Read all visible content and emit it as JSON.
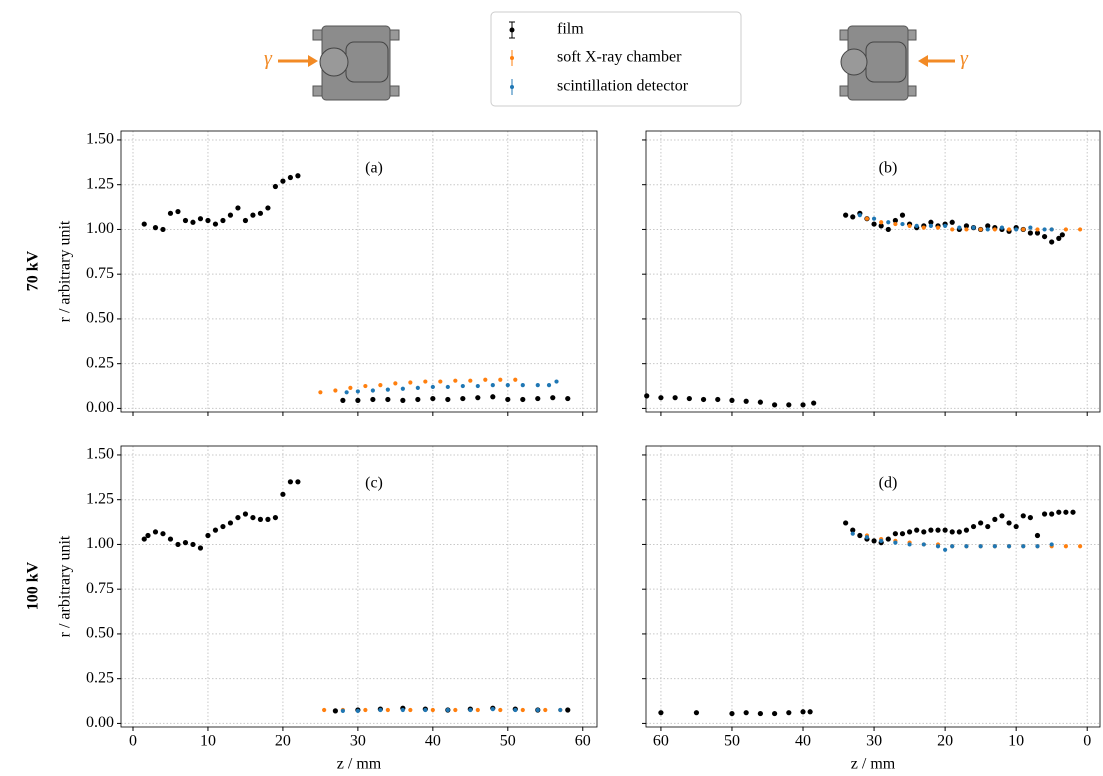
{
  "row_labels": [
    "70 kV",
    "100 kV"
  ],
  "illustrations": [
    {
      "label": "γ"
    },
    {
      "label": "γ"
    }
  ],
  "chart_data": [
    {
      "type": "scatter",
      "title": "(a)",
      "xlim": [
        -1.6,
        61.9
      ],
      "ylim": [
        -0.02,
        1.55
      ],
      "xticks": [
        0,
        10,
        20,
        30,
        40,
        50,
        60
      ],
      "yticks": [
        {
          "value": 0,
          "label": "0.00"
        },
        {
          "value": 0.25,
          "label": "0.25"
        },
        {
          "value": 0.5,
          "label": "0.50"
        },
        {
          "value": 0.75,
          "label": "0.75"
        },
        {
          "value": 1,
          "label": "1.00"
        },
        {
          "value": 1.25,
          "label": "1.25"
        },
        {
          "value": 1.5,
          "label": "1.50"
        }
      ],
      "show_xticklabels": false,
      "show_yticklabels": true,
      "grid": true,
      "ylabel": "r / arbitrary unit",
      "series": [
        {
          "name": "film",
          "color": "#000000",
          "x": [
            1.5,
            3,
            4,
            5,
            6,
            7,
            8,
            9,
            10,
            11,
            12,
            13,
            14,
            15,
            16,
            17,
            18,
            19,
            20,
            21,
            22,
            28,
            30,
            32,
            34,
            36,
            38,
            40,
            42,
            44,
            46,
            48,
            50,
            52,
            54,
            56,
            58
          ],
          "values": [
            1.03,
            1.01,
            1.0,
            1.09,
            1.1,
            1.05,
            1.04,
            1.06,
            1.05,
            1.03,
            1.05,
            1.08,
            1.12,
            1.05,
            1.08,
            1.09,
            1.12,
            1.24,
            1.27,
            1.29,
            1.3,
            0.045,
            0.045,
            0.05,
            0.05,
            0.045,
            0.05,
            0.055,
            0.05,
            0.055,
            0.06,
            0.065,
            0.05,
            0.05,
            0.055,
            0.06,
            0.055
          ]
        },
        {
          "name": "soft X-ray chamber",
          "color": "#ff7f0e",
          "x": [
            25,
            27,
            29,
            31,
            33,
            35,
            37,
            39,
            41,
            43,
            45,
            47,
            49,
            51
          ],
          "values": [
            0.09,
            0.1,
            0.115,
            0.125,
            0.13,
            0.14,
            0.145,
            0.15,
            0.15,
            0.155,
            0.155,
            0.16,
            0.16,
            0.16
          ]
        },
        {
          "name": "scintillation detector",
          "color": "#1f77b4",
          "x": [
            28.5,
            30,
            32,
            34,
            36,
            38,
            40,
            42,
            44,
            46,
            48,
            50,
            52,
            54,
            55.5,
            56.5
          ],
          "values": [
            0.09,
            0.095,
            0.1,
            0.105,
            0.11,
            0.115,
            0.12,
            0.12,
            0.125,
            0.125,
            0.13,
            0.13,
            0.13,
            0.13,
            0.13,
            0.15
          ]
        }
      ]
    },
    {
      "type": "scatter",
      "title": "(b)",
      "xlim": [
        62.1,
        -1.8
      ],
      "ylim": [
        -0.02,
        1.55
      ],
      "xticks": [
        60,
        50,
        40,
        30,
        20,
        10,
        0
      ],
      "yticks": [
        {
          "value": 0,
          "label": "0.00"
        },
        {
          "value": 0.25,
          "label": "0.25"
        },
        {
          "value": 0.5,
          "label": "0.50"
        },
        {
          "value": 0.75,
          "label": "0.75"
        },
        {
          "value": 1,
          "label": "1.00"
        },
        {
          "value": 1.25,
          "label": "1.25"
        },
        {
          "value": 1.5,
          "label": "1.50"
        }
      ],
      "show_xticklabels": false,
      "show_yticklabels": false,
      "grid": true,
      "series": [
        {
          "color": "#000000",
          "x": [
            34,
            33,
            32,
            31,
            30,
            29,
            28,
            27,
            26,
            25,
            24,
            23,
            22,
            21,
            20,
            19,
            18,
            17,
            16,
            15,
            14,
            13,
            12,
            11,
            10,
            9,
            8,
            7,
            6,
            5,
            4,
            3.5,
            62,
            60,
            58,
            56,
            54,
            52,
            50,
            48,
            46,
            44,
            42,
            40,
            38.5
          ],
          "values": [
            1.08,
            1.07,
            1.09,
            1.06,
            1.03,
            1.02,
            1.0,
            1.05,
            1.08,
            1.03,
            1.01,
            1.02,
            1.04,
            1.02,
            1.03,
            1.04,
            1.0,
            1.02,
            1.01,
            1.0,
            1.02,
            1.01,
            1.0,
            0.99,
            1.01,
            1.0,
            0.98,
            0.98,
            0.96,
            0.93,
            0.95,
            0.97,
            0.07,
            0.06,
            0.06,
            0.055,
            0.05,
            0.05,
            0.045,
            0.04,
            0.035,
            0.02,
            0.02,
            0.02,
            0.03
          ]
        },
        {
          "color": "#ff7f0e",
          "x": [
            31,
            29,
            27,
            25,
            23,
            21,
            19,
            17,
            15,
            13,
            11,
            9,
            7,
            5,
            3,
            1
          ],
          "values": [
            1.06,
            1.04,
            1.03,
            1.02,
            1.01,
            1.01,
            1.0,
            1.0,
            1.0,
            1.0,
            1.0,
            1.0,
            1.0,
            1.0,
            1.0,
            1.0
          ]
        },
        {
          "color": "#1f77b4",
          "x": [
            32,
            30,
            28,
            26,
            24,
            22,
            20,
            18,
            16,
            14,
            12,
            10,
            8,
            6,
            5
          ],
          "values": [
            1.08,
            1.06,
            1.04,
            1.03,
            1.02,
            1.02,
            1.02,
            1.01,
            1.01,
            1.0,
            1.01,
            1.0,
            1.01,
            1.0,
            1.0
          ]
        }
      ]
    },
    {
      "type": "scatter",
      "title": "(c)",
      "xlim": [
        -1.6,
        61.9
      ],
      "ylim": [
        -0.02,
        1.55
      ],
      "xticks": [
        0,
        10,
        20,
        30,
        40,
        50,
        60
      ],
      "yticks": [
        {
          "value": 0,
          "label": "0.00"
        },
        {
          "value": 0.25,
          "label": "0.25"
        },
        {
          "value": 0.5,
          "label": "0.50"
        },
        {
          "value": 0.75,
          "label": "0.75"
        },
        {
          "value": 1,
          "label": "1.00"
        },
        {
          "value": 1.25,
          "label": "1.25"
        },
        {
          "value": 1.5,
          "label": "1.50"
        }
      ],
      "show_xticklabels": true,
      "show_yticklabels": true,
      "grid": true,
      "xlabel": "z / mm",
      "ylabel": "r / arbitrary unit",
      "series": [
        {
          "color": "#000000",
          "x": [
            1.5,
            2,
            3,
            4,
            5,
            6,
            7,
            8,
            9,
            10,
            11,
            12,
            13,
            14,
            15,
            16,
            17,
            18,
            19,
            20,
            21,
            22,
            27,
            30,
            33,
            36,
            39,
            42,
            45,
            48,
            51,
            54,
            58
          ],
          "values": [
            1.03,
            1.05,
            1.07,
            1.06,
            1.03,
            1.0,
            1.01,
            1.0,
            0.98,
            1.05,
            1.08,
            1.1,
            1.12,
            1.15,
            1.17,
            1.15,
            1.14,
            1.14,
            1.15,
            1.28,
            1.35,
            1.35,
            0.07,
            0.075,
            0.08,
            0.085,
            0.08,
            0.075,
            0.08,
            0.085,
            0.08,
            0.075,
            0.075
          ]
        },
        {
          "color": "#ff7f0e",
          "x": [
            25.5,
            28,
            31,
            34,
            37,
            40,
            43,
            46,
            49,
            52,
            55,
            57
          ],
          "values": [
            0.075,
            0.075,
            0.075,
            0.075,
            0.075,
            0.075,
            0.075,
            0.075,
            0.075,
            0.075,
            0.075,
            0.075
          ]
        },
        {
          "color": "#1f77b4",
          "x": [
            28,
            30,
            33,
            36,
            39,
            42,
            45,
            48,
            51,
            54,
            57
          ],
          "values": [
            0.07,
            0.07,
            0.075,
            0.075,
            0.075,
            0.075,
            0.075,
            0.08,
            0.075,
            0.075,
            0.075
          ]
        }
      ]
    },
    {
      "type": "scatter",
      "title": "(d)",
      "xlim": [
        62.1,
        -1.8
      ],
      "ylim": [
        -0.02,
        1.55
      ],
      "xticks": [
        60,
        50,
        40,
        30,
        20,
        10,
        0
      ],
      "yticks": [
        {
          "value": 0,
          "label": "0.00"
        },
        {
          "value": 0.25,
          "label": "0.25"
        },
        {
          "value": 0.5,
          "label": "0.50"
        },
        {
          "value": 0.75,
          "label": "0.75"
        },
        {
          "value": 1,
          "label": "1.00"
        },
        {
          "value": 1.25,
          "label": "1.25"
        },
        {
          "value": 1.5,
          "label": "1.50"
        }
      ],
      "show_xticklabels": true,
      "show_yticklabels": false,
      "grid": true,
      "xlabel": "z / mm",
      "series": [
        {
          "color": "#000000",
          "x": [
            34,
            33,
            32,
            31,
            30,
            29,
            28,
            27,
            26,
            25,
            24,
            23,
            22,
            21,
            20,
            19,
            18,
            17,
            16,
            15,
            14,
            13,
            12,
            11,
            10,
            9,
            8,
            7,
            6,
            5,
            4,
            3,
            2,
            60,
            55,
            50,
            48,
            46,
            44,
            42,
            40,
            39
          ],
          "values": [
            1.12,
            1.08,
            1.05,
            1.03,
            1.02,
            1.01,
            1.03,
            1.06,
            1.06,
            1.07,
            1.08,
            1.07,
            1.08,
            1.08,
            1.08,
            1.07,
            1.07,
            1.08,
            1.1,
            1.12,
            1.1,
            1.14,
            1.16,
            1.12,
            1.1,
            1.16,
            1.15,
            1.05,
            1.17,
            1.17,
            1.18,
            1.18,
            1.18,
            0.06,
            0.06,
            0.055,
            0.06,
            0.055,
            0.055,
            0.06,
            0.065,
            0.065
          ]
        },
        {
          "color": "#ff7f0e",
          "x": [
            31,
            29,
            27,
            25,
            23,
            21,
            19,
            17,
            15,
            13,
            11,
            9,
            7,
            5,
            3,
            1
          ],
          "values": [
            1.05,
            1.03,
            1.02,
            1.01,
            1.0,
            1.0,
            0.99,
            0.99,
            0.99,
            0.99,
            0.99,
            0.99,
            0.99,
            0.99,
            0.99,
            0.99
          ]
        },
        {
          "color": "#1f77b4",
          "x": [
            33,
            31,
            29,
            27,
            25,
            23,
            21,
            20,
            19,
            17,
            15,
            13,
            11,
            9,
            7,
            5
          ],
          "values": [
            1.06,
            1.04,
            1.02,
            1.01,
            1.0,
            1.0,
            0.99,
            0.97,
            0.99,
            0.99,
            0.99,
            0.99,
            0.99,
            0.99,
            0.99,
            1.0
          ]
        }
      ]
    }
  ]
}
